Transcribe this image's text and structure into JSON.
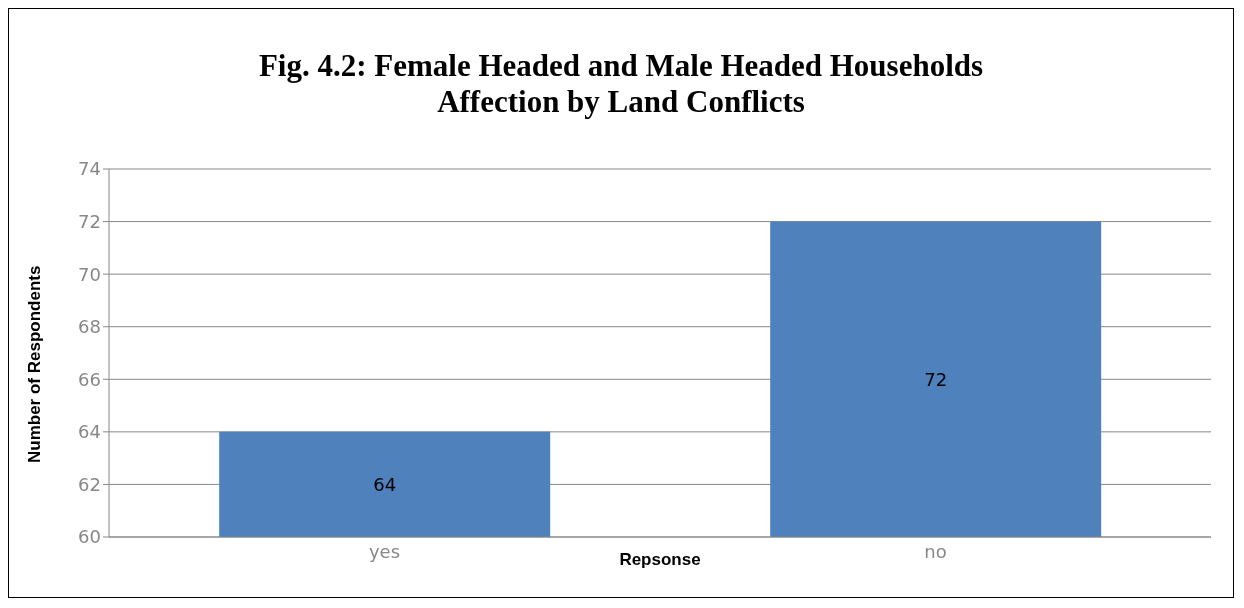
{
  "chart_data": {
    "type": "bar",
    "title": "Fig. 4.2: Female Headed and Male Headed Households Affection by Land Conflicts",
    "xlabel": "Repsonse",
    "ylabel": "Number of Respondents",
    "categories": [
      "yes",
      "no"
    ],
    "values": [
      64,
      72
    ],
    "color": "#4f81bd",
    "ylim": [
      60,
      74
    ],
    "yticks": [
      60,
      62,
      64,
      66,
      68,
      70,
      72,
      74
    ],
    "grid": "y",
    "data_labels": true,
    "legend": false
  }
}
